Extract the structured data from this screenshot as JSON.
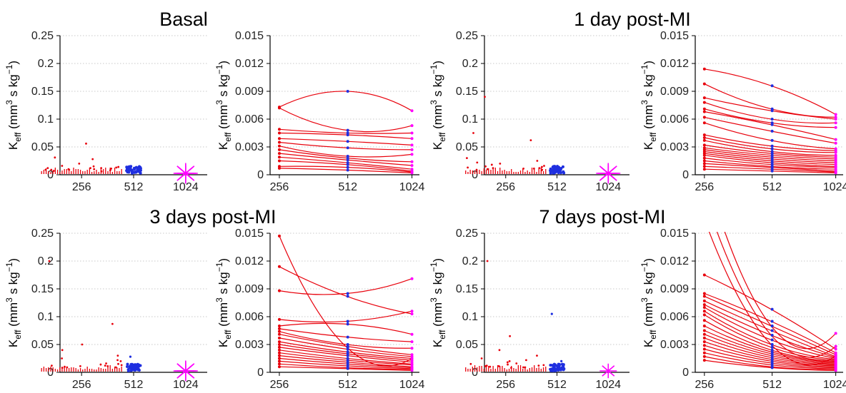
{
  "chart_data": [
    {
      "type": "scatter",
      "title": "Basal",
      "ylabel": {
        "base": "K",
        "sub": "eff",
        "pre": " (mm",
        "sup1": "3",
        "mid": " s kg",
        "sup2": "−1",
        "post": ")"
      },
      "x_ticks": [
        "256",
        "512",
        "1024"
      ],
      "y_ticks": [
        "0",
        "0.05",
        "0.1",
        "0.15",
        "0.2",
        "0.25"
      ],
      "ylim": [
        0,
        0.25
      ],
      "colors": {
        "256": "#e8000b",
        "512": "#1f2fe0",
        "1024": "#ff00ff"
      },
      "groups": [
        {
          "x": "256",
          "points": [
            0.012,
            0.008,
            0.01,
            0.02,
            0.006,
            0.015,
            0.011,
            0.009,
            0.013,
            0.007,
            0.016,
            0.012,
            0.031,
            0.009,
            0.028,
            0.01,
            0.056,
            0.012,
            0.009,
            0.014
          ]
        },
        {
          "x": "512",
          "points": [
            0.005,
            0.008,
            0.012,
            0.006,
            0.01,
            0.004,
            0.015,
            0.007,
            0.009,
            0.011
          ]
        },
        {
          "x": "1024",
          "points": [
            0.004,
            0.002,
            0.003
          ]
        }
      ]
    },
    {
      "type": "line",
      "ylabel": {
        "base": "K",
        "sub": "eff",
        "pre": " (mm",
        "sup1": "3",
        "mid": " s kg",
        "sup2": "−1",
        "post": ")"
      },
      "x": [
        "256",
        "512",
        "1024"
      ],
      "y_ticks": [
        "0",
        "0.003",
        "0.006",
        "0.009",
        "0.012",
        "0.015"
      ],
      "ylim": [
        0,
        0.015
      ],
      "series": [
        {
          "values": [
            0.0073,
            0.009,
            0.0069
          ]
        },
        {
          "values": [
            0.0072,
            0.0048,
            0.0053
          ]
        },
        {
          "values": [
            0.0049,
            0.0045,
            0.0045
          ]
        },
        {
          "values": [
            0.0045,
            0.0043,
            0.0039
          ]
        },
        {
          "values": [
            0.0039,
            0.0036,
            0.0032
          ]
        },
        {
          "values": [
            0.0035,
            0.0029,
            0.0027
          ]
        },
        {
          "values": [
            0.0031,
            0.002,
            0.0022
          ]
        },
        {
          "values": [
            0.0027,
            0.0018,
            0.0014
          ]
        },
        {
          "values": [
            0.0023,
            0.0016,
            0.001
          ]
        },
        {
          "values": [
            0.0019,
            0.0013,
            0.0006
          ]
        },
        {
          "values": [
            0.0015,
            0.0011,
            0.0004
          ]
        },
        {
          "values": [
            0.0009,
            0.0008,
            0.0003
          ]
        },
        {
          "values": [
            0.0007,
            0.0005,
            0.0002
          ]
        }
      ]
    },
    {
      "type": "scatter",
      "title": "1 day post-MI",
      "ylabel": {
        "base": "K",
        "sub": "eff",
        "pre": " (mm",
        "sup1": "3",
        "mid": " s kg",
        "sup2": "−1",
        "post": ")"
      },
      "x_ticks": [
        "256",
        "512",
        "1024"
      ],
      "y_ticks": [
        "0",
        "0.05",
        "0.1",
        "0.15",
        "0.2",
        "0.25"
      ],
      "ylim": [
        0,
        0.25
      ],
      "colors": {
        "256": "#e8000b",
        "512": "#1f2fe0",
        "1024": "#ff00ff"
      },
      "groups": [
        {
          "x": "256",
          "points": [
            0.012,
            0.018,
            0.009,
            0.025,
            0.011,
            0.14,
            0.02,
            0.013,
            0.075,
            0.016,
            0.01,
            0.03,
            0.014,
            0.062,
            0.008,
            0.022,
            0.012,
            0.015,
            0.009,
            0.011
          ]
        },
        {
          "x": "512",
          "points": [
            0.004,
            0.008,
            0.012,
            0.006,
            0.009,
            0.005,
            0.011,
            0.007
          ]
        },
        {
          "x": "1024",
          "points": [
            0.003,
            0.002
          ]
        }
      ]
    },
    {
      "type": "line",
      "ylabel": {
        "base": "K",
        "sub": "eff",
        "pre": " (mm",
        "sup1": "3",
        "mid": " s kg",
        "sup2": "−1",
        "post": ")"
      },
      "x": [
        "256",
        "512",
        "1024"
      ],
      "y_ticks": [
        "0",
        "0.003",
        "0.006",
        "0.009",
        "0.012",
        "0.015"
      ],
      "ylim": [
        0,
        0.015
      ],
      "series": [
        {
          "values": [
            0.0114,
            0.0096,
            0.0065
          ]
        },
        {
          "values": [
            0.0098,
            0.0071,
            0.0062
          ]
        },
        {
          "values": [
            0.0083,
            0.0069,
            0.006
          ]
        },
        {
          "values": [
            0.0078,
            0.006,
            0.0056
          ]
        },
        {
          "values": [
            0.0071,
            0.0056,
            0.0051
          ]
        },
        {
          "values": [
            0.0068,
            0.0054,
            0.0038
          ]
        },
        {
          "values": [
            0.0062,
            0.0047,
            0.0034
          ]
        },
        {
          "values": [
            0.0056,
            0.0037,
            0.0028
          ]
        },
        {
          "values": [
            0.0043,
            0.0031,
            0.0026
          ]
        },
        {
          "values": [
            0.004,
            0.0028,
            0.0024
          ]
        },
        {
          "values": [
            0.0037,
            0.0025,
            0.0021
          ]
        },
        {
          "values": [
            0.0032,
            0.0023,
            0.0019
          ]
        },
        {
          "values": [
            0.0029,
            0.0021,
            0.0017
          ]
        },
        {
          "values": [
            0.0027,
            0.0019,
            0.0015
          ]
        },
        {
          "values": [
            0.0025,
            0.0017,
            0.0013
          ]
        },
        {
          "values": [
            0.0023,
            0.0015,
            0.0011
          ]
        },
        {
          "values": [
            0.0021,
            0.0013,
            0.0009
          ]
        },
        {
          "values": [
            0.0018,
            0.0011,
            0.0008
          ]
        },
        {
          "values": [
            0.0015,
            0.0009,
            0.0006
          ]
        },
        {
          "values": [
            0.0012,
            0.0008,
            0.0004
          ]
        },
        {
          "values": [
            0.0009,
            0.0006,
            0.0003
          ]
        },
        {
          "values": [
            0.0006,
            0.0004,
            0.0002
          ]
        }
      ]
    },
    {
      "type": "scatter",
      "title": "3 days post-MI",
      "ylabel": {
        "base": "K",
        "sub": "eff",
        "pre": " (mm",
        "sup1": "3",
        "mid": " s kg",
        "sup2": "−1",
        "post": ")"
      },
      "x_ticks": [
        "256",
        "512",
        "1024"
      ],
      "y_ticks": [
        "0",
        "0.05",
        "0.1",
        "0.15",
        "0.2",
        "0.25"
      ],
      "ylim": [
        0,
        0.25
      ],
      "colors": {
        "256": "#e8000b",
        "512": "#1f2fe0",
        "1024": "#ff00ff"
      },
      "groups": [
        {
          "x": "256",
          "points": [
            0.2,
            0.012,
            0.025,
            0.009,
            0.015,
            0.011,
            0.02,
            0.013,
            0.04,
            0.016,
            0.01,
            0.03,
            0.014,
            0.05,
            0.008,
            0.022,
            0.012,
            0.087,
            0.009,
            0.011
          ]
        },
        {
          "x": "512",
          "points": [
            0.028,
            0.008,
            0.012,
            0.006,
            0.015,
            0.004,
            0.011,
            0.007,
            0.009
          ]
        },
        {
          "x": "1024",
          "points": [
            0.006,
            0.003,
            0.004
          ]
        }
      ]
    },
    {
      "type": "line",
      "ylabel": {
        "base": "K",
        "sub": "eff",
        "pre": " (mm",
        "sup1": "3",
        "mid": " s kg",
        "sup2": "−1",
        "post": ")"
      },
      "x": [
        "256",
        "512",
        "1024"
      ],
      "y_ticks": [
        "0",
        "0.003",
        "0.006",
        "0.009",
        "0.012",
        "0.015"
      ],
      "ylim": [
        0,
        0.015
      ],
      "series": [
        {
          "values": [
            0.0147,
            0.0027,
            0.0015
          ]
        },
        {
          "values": [
            0.0114,
            0.0082,
            0.0063
          ]
        },
        {
          "values": [
            0.0088,
            0.0085,
            0.0101
          ]
        },
        {
          "values": [
            0.0057,
            0.0055,
            0.0066
          ]
        },
        {
          "values": [
            0.005,
            0.0052,
            0.0041
          ]
        },
        {
          "values": [
            0.0047,
            0.0038,
            0.0033
          ]
        },
        {
          "values": [
            0.0044,
            0.003,
            0.0026
          ]
        },
        {
          "values": [
            0.0041,
            0.0028,
            0.0019
          ]
        },
        {
          "values": [
            0.0037,
            0.0025,
            0.0017
          ]
        },
        {
          "values": [
            0.0033,
            0.0022,
            0.0015
          ]
        },
        {
          "values": [
            0.003,
            0.002,
            0.0013
          ]
        },
        {
          "values": [
            0.0027,
            0.0018,
            0.0011
          ]
        },
        {
          "values": [
            0.0024,
            0.0015,
            0.0009
          ]
        },
        {
          "values": [
            0.0021,
            0.0013,
            0.0008
          ]
        },
        {
          "values": [
            0.0018,
            0.0011,
            0.0006
          ]
        },
        {
          "values": [
            0.0015,
            0.0009,
            0.0005
          ]
        },
        {
          "values": [
            0.0012,
            0.0007,
            0.0004
          ]
        },
        {
          "values": [
            0.0009,
            0.0005,
            0.0003
          ]
        },
        {
          "values": [
            0.0006,
            0.0004,
            0.0002
          ]
        }
      ]
    },
    {
      "type": "scatter",
      "title": "7 days post-MI",
      "ylabel": {
        "base": "K",
        "sub": "eff",
        "pre": " (mm",
        "sup1": "3",
        "mid": " s kg",
        "sup2": "−1",
        "post": ")"
      },
      "x_ticks": [
        "256",
        "512",
        "1024"
      ],
      "y_ticks": [
        "0",
        "0.05",
        "0.1",
        "0.15",
        "0.2",
        "0.25"
      ],
      "ylim": [
        0,
        0.25
      ],
      "colors": {
        "256": "#e8000b",
        "512": "#1f2fe0",
        "1024": "#ff00ff"
      },
      "groups": [
        {
          "x": "256",
          "points": [
            0.2,
            0.012,
            0.065,
            0.009,
            0.015,
            0.011,
            0.02,
            0.013,
            0.04,
            0.016,
            0.01,
            0.03,
            0.014,
            0.025,
            0.008,
            0.022,
            0.012,
            0.018,
            0.009,
            0.011
          ]
        },
        {
          "x": "512",
          "points": [
            0.105,
            0.008,
            0.012,
            0.006,
            0.009,
            0.004,
            0.011,
            0.007,
            0.02
          ]
        },
        {
          "x": "1024",
          "points": [
            0.002,
            0.001
          ]
        }
      ]
    },
    {
      "type": "line",
      "ylabel": {
        "base": "K",
        "sub": "eff",
        "pre": " (mm",
        "sup1": "3",
        "mid": " s kg",
        "sup2": "−1",
        "post": ")"
      },
      "x": [
        "256",
        "512",
        "1024"
      ],
      "y_ticks": [
        "0",
        "0.003",
        "0.006",
        "0.009",
        "0.012",
        "0.015"
      ],
      "ylim": [
        0,
        0.015
      ],
      "series": [
        {
          "values": [
            0.022,
            0.005,
            0.0042
          ]
        },
        {
          "values": [
            0.019,
            0.004,
            0.0028
          ]
        },
        {
          "values": [
            0.0165,
            0.003,
            0.0018
          ]
        },
        {
          "values": [
            0.0105,
            0.0068,
            0.0025
          ]
        },
        {
          "values": [
            0.0085,
            0.0055,
            0.0021
          ]
        },
        {
          "values": [
            0.0082,
            0.005,
            0.0019
          ]
        },
        {
          "values": [
            0.0077,
            0.0045,
            0.0017
          ]
        },
        {
          "values": [
            0.0073,
            0.004,
            0.0016
          ]
        },
        {
          "values": [
            0.007,
            0.0035,
            0.0015
          ]
        },
        {
          "values": [
            0.0066,
            0.003,
            0.0014
          ]
        },
        {
          "values": [
            0.0062,
            0.0027,
            0.0013
          ]
        },
        {
          "values": [
            0.0056,
            0.0024,
            0.0012
          ]
        },
        {
          "values": [
            0.005,
            0.0022,
            0.0011
          ]
        },
        {
          "values": [
            0.0045,
            0.002,
            0.001
          ]
        },
        {
          "values": [
            0.0041,
            0.0018,
            0.0009
          ]
        },
        {
          "values": [
            0.0037,
            0.0016,
            0.0008
          ]
        },
        {
          "values": [
            0.0033,
            0.0014,
            0.0007
          ]
        },
        {
          "values": [
            0.0029,
            0.0012,
            0.0006
          ]
        },
        {
          "values": [
            0.0025,
            0.001,
            0.0005
          ]
        },
        {
          "values": [
            0.0021,
            0.0008,
            0.0004
          ]
        },
        {
          "values": [
            0.0017,
            0.0006,
            0.0003
          ]
        },
        {
          "values": [
            0.0013,
            0.0005,
            0.0002
          ]
        }
      ]
    }
  ]
}
